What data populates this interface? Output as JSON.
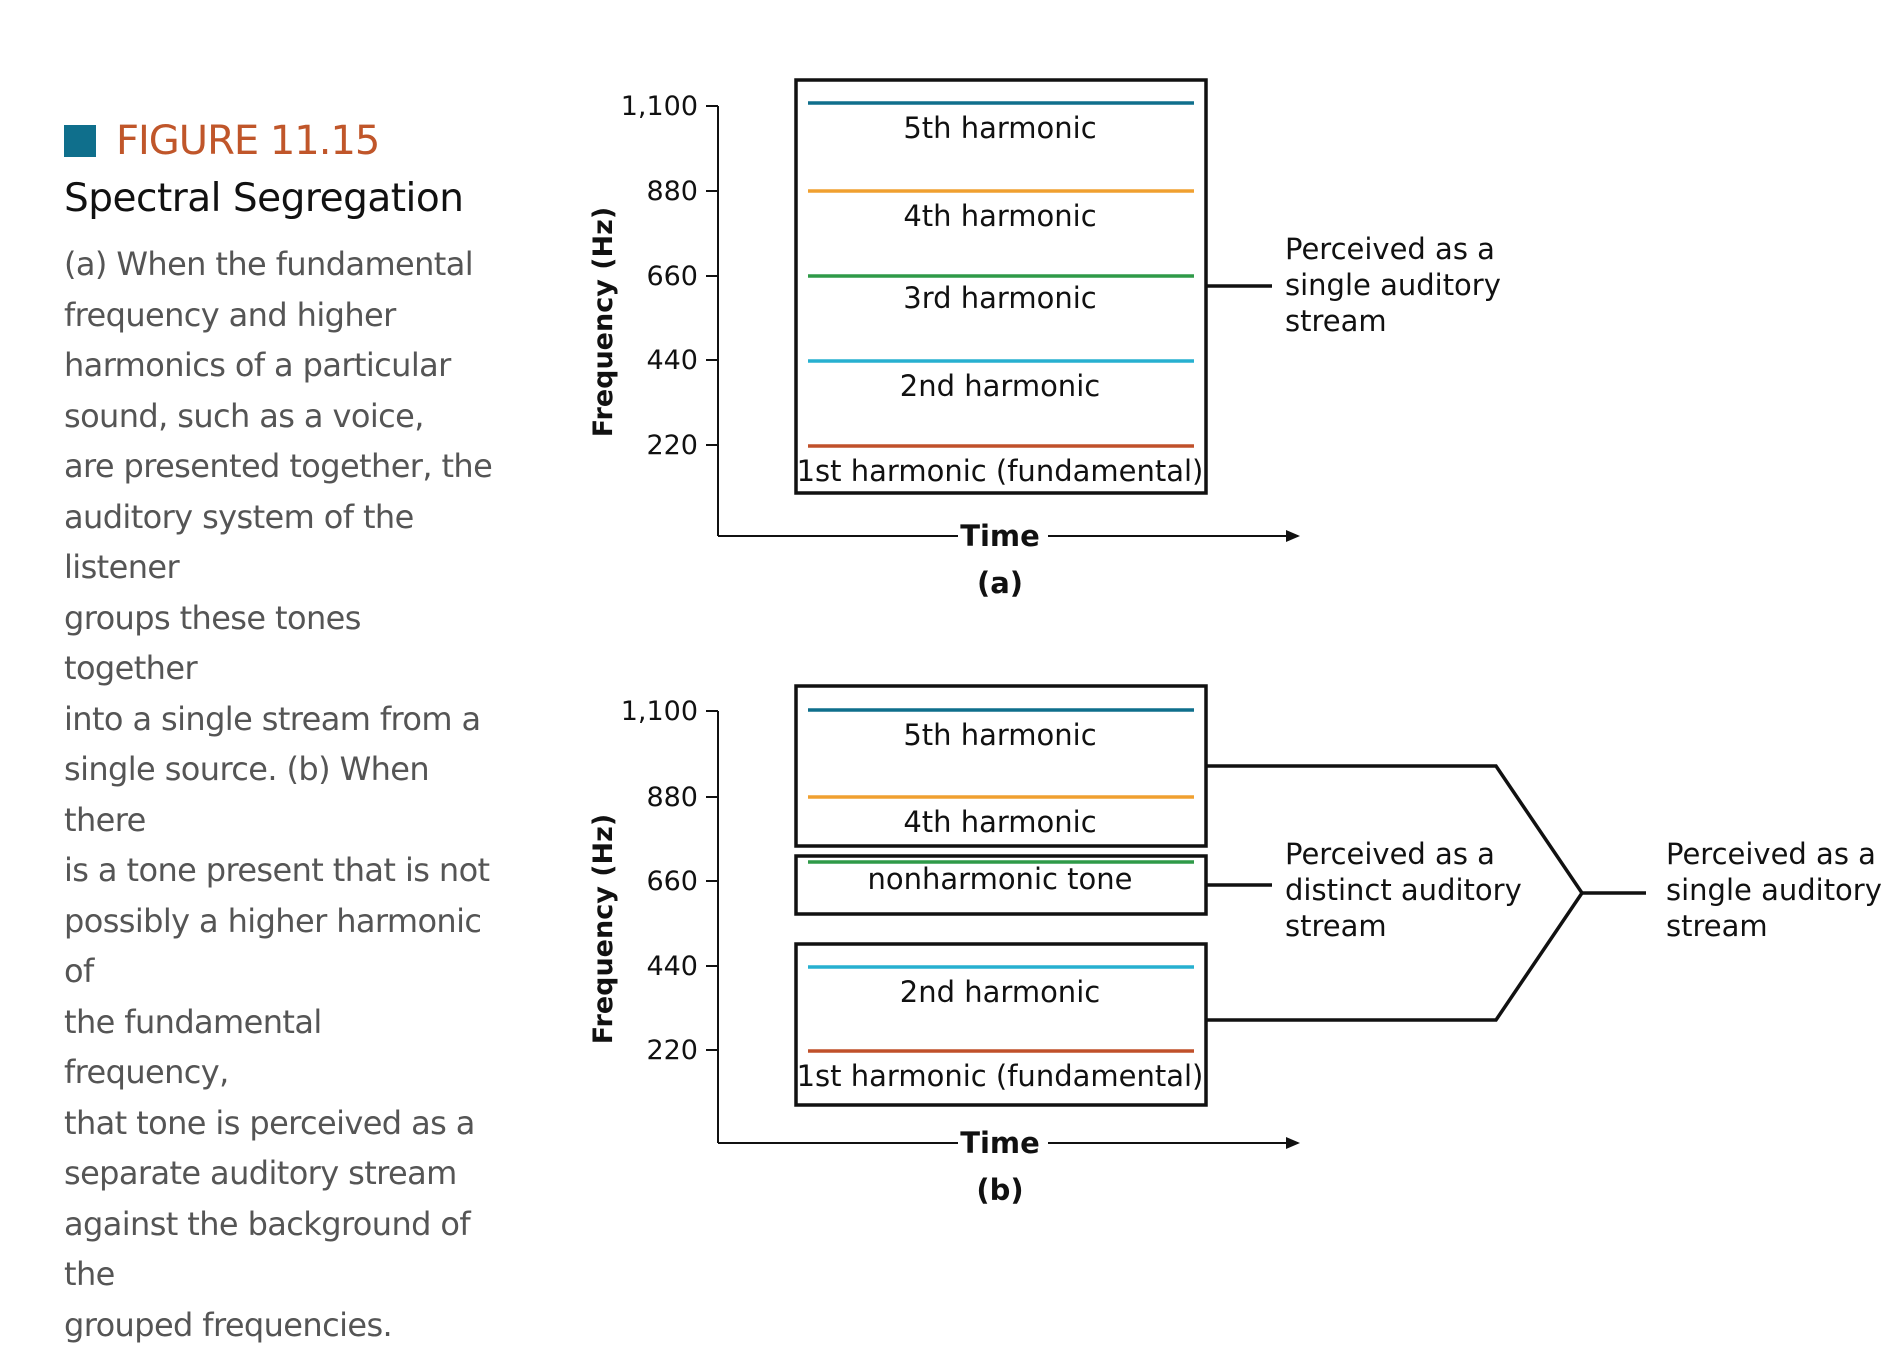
{
  "colors": {
    "accent_square": "#0f6f8c",
    "figure_label": "#c0562a",
    "harmonic_1": "#c0502a",
    "harmonic_2": "#27b0d0",
    "harmonic_3": "#2f9a48",
    "harmonic_4": "#f0a030",
    "harmonic_5": "#0f6f8c",
    "nonharmonic": "#2f9a48"
  },
  "caption": {
    "label": "FIGURE 11.15",
    "title": "Spectral Segregation",
    "lines": [
      "(a) When the fundamental",
      "frequency and higher",
      "harmonics of a particular",
      "sound, such as a voice,",
      "are presented together, the",
      "auditory system of the listener",
      "groups these tones together",
      "into a single stream from a",
      "single source. (b) When there",
      "is a tone present that is not",
      "possibly a higher harmonic of",
      "the fundamental frequency,",
      "that tone is perceived as a",
      "separate auditory stream",
      "against the background of the",
      "grouped frequencies."
    ]
  },
  "panel_a": {
    "label": "(a)",
    "ylabel": "Frequency (Hz)",
    "xlabel": "Time",
    "ticks": [
      "1,100",
      "880",
      "660",
      "440",
      "220"
    ],
    "tones": [
      {
        "label": "5th harmonic",
        "hz": 1100
      },
      {
        "label": "4th harmonic",
        "hz": 880
      },
      {
        "label": "3rd harmonic",
        "hz": 660
      },
      {
        "label": "2nd harmonic",
        "hz": 440
      },
      {
        "label": "1st harmonic (fundamental)",
        "hz": 220
      }
    ],
    "annotation": [
      "Perceived as a",
      "single auditory",
      "stream"
    ]
  },
  "panel_b": {
    "label": "(b)",
    "ylabel": "Frequency (Hz)",
    "xlabel": "Time",
    "ticks": [
      "1,100",
      "880",
      "660",
      "440",
      "220"
    ],
    "tones": [
      {
        "label": "5th harmonic",
        "hz": 1100
      },
      {
        "label": "4th harmonic",
        "hz": 880
      },
      {
        "label": "nonharmonic tone",
        "hz": 660
      },
      {
        "label": "2nd harmonic",
        "hz": 440
      },
      {
        "label": "1st harmonic (fundamental)",
        "hz": 220
      }
    ],
    "annotation_middle": [
      "Perceived as a",
      "distinct auditory",
      "stream"
    ],
    "annotation_right": [
      "Perceived as a",
      "single auditory",
      "stream"
    ]
  }
}
